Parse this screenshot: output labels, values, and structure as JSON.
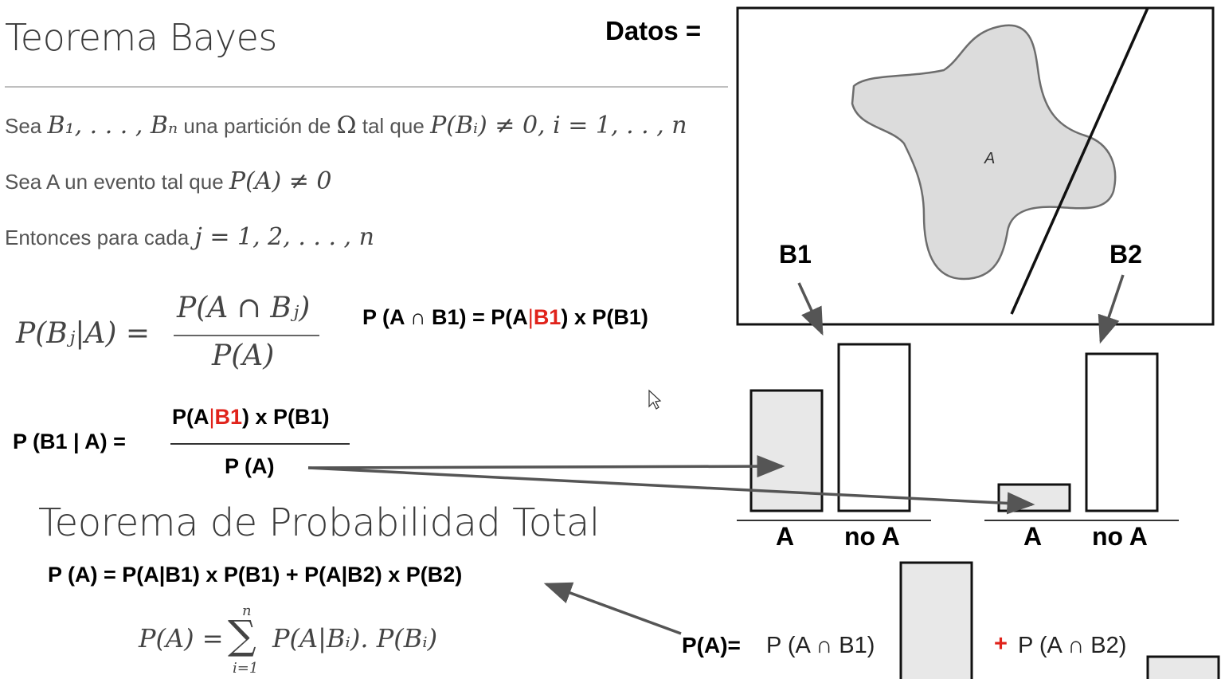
{
  "title_bayes": "Teorema Bayes",
  "line1": {
    "prefix": "Sea",
    "m1": "B₁, . . . , Bₙ",
    "mid": "una partición de",
    "m2": "Ω",
    "mid2": "tal que",
    "m3": "P(Bᵢ) ≠ 0, i = 1, . . , n"
  },
  "line2": {
    "prefix": "Sea A un evento tal que",
    "m1": "P(A) ≠ 0"
  },
  "line3": {
    "prefix": "Entonces para cada",
    "m1": "j = 1, 2, . . . , n"
  },
  "bayes_formula": {
    "lhs": "P(Bⱼ|A) =",
    "num": "P(A ∩ Bⱼ)",
    "den": "P(A)"
  },
  "joint_formula": {
    "pre": "P (A ∩ B1) = P(A",
    "bar": "|",
    "b1": "B1",
    "post": ") x P(B1)"
  },
  "posterior": {
    "lhs": "P (B1 | A) =",
    "num_pre": "P(A",
    "num_bar": "|",
    "num_b1": "B1",
    "num_post": ") x P(B1)",
    "den": "P (A)"
  },
  "title_total": "Teorema de Probabilidad Total",
  "total_formula": "P (A) = P(A|B1) x P(B1) + P(A|B2) x P(B2)",
  "sum_formula": {
    "lhs": "P(A) =",
    "sigma": "∑",
    "upper": "n",
    "lower": "i=1",
    "rhs": "P(A|Bᵢ). P(Bᵢ)"
  },
  "datos_label": "Datos =",
  "venn": {
    "region_label": "A",
    "b1": "B1",
    "b2": "B2"
  },
  "bars_b1": {
    "label_a": "A",
    "label_noa": "no A"
  },
  "bars_b2": {
    "label_a": "A",
    "label_noa": "no A"
  },
  "bottom": {
    "pa": "P(A)=",
    "term1": "P (A ∩ B1)",
    "plus": "+",
    "term2": "P (A ∩ B2)"
  },
  "colors": {
    "fill_gray": "#e8e8e8",
    "arrow": "#555555",
    "red": "#e0231b"
  }
}
